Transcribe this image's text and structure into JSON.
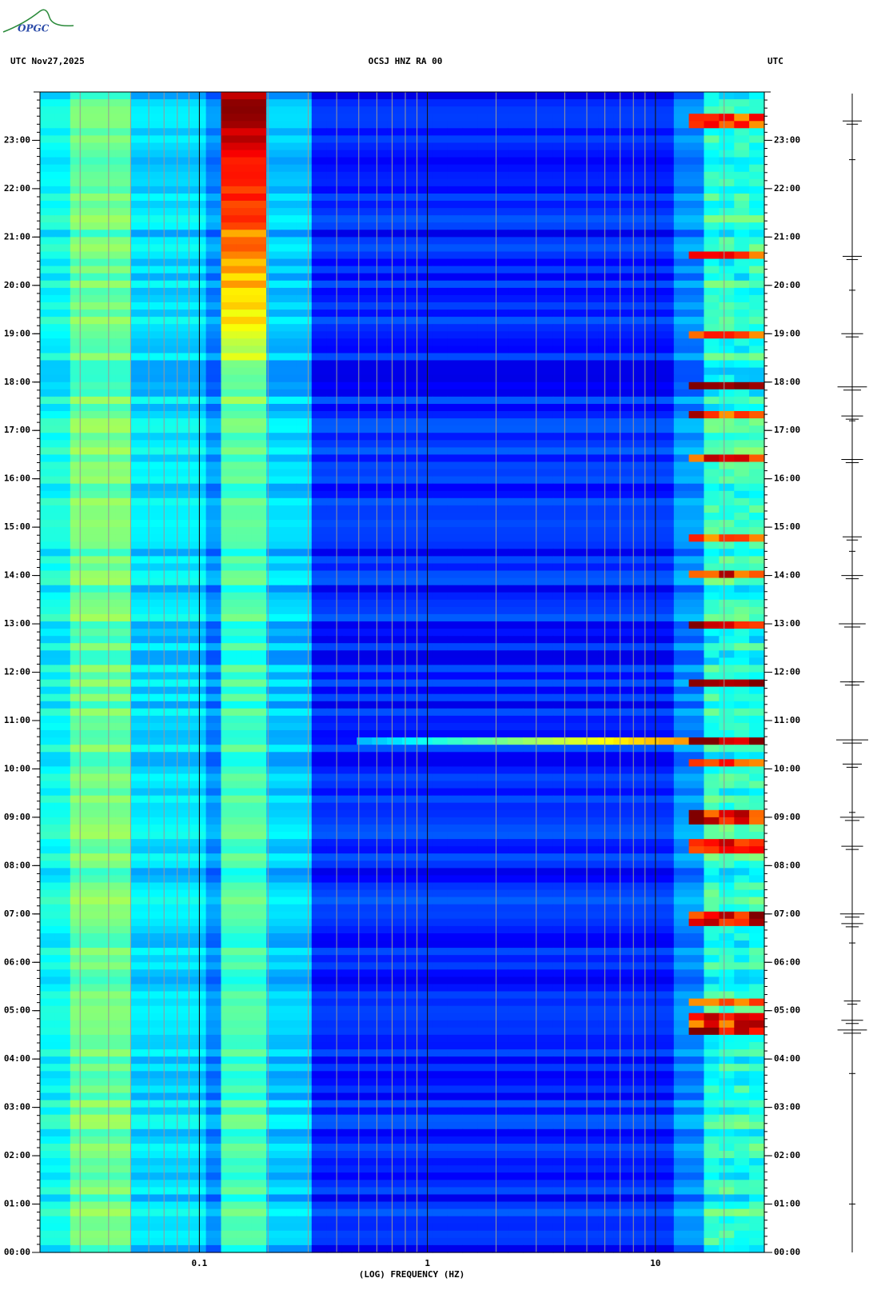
{
  "logo": "OPGC",
  "chart_data": {
    "type": "spectrogram",
    "title": "OCSJ HNZ RA 00",
    "date_label": "UTC  Nov27,2025",
    "right_label": "UTC",
    "xlabel": "(LOG) FREQUENCY (HZ)",
    "xscale": "log",
    "xlim": [
      0.02,
      30
    ],
    "xticks": [
      {
        "value": 0.1,
        "label": "0.1"
      },
      1,
      10
    ],
    "xgrid": [
      0.02,
      0.03,
      0.04,
      0.05,
      0.06,
      0.07,
      0.08,
      0.09,
      0.1,
      0.2,
      0.3,
      0.4,
      0.5,
      0.6,
      0.7,
      0.8,
      0.9,
      1,
      2,
      3,
      4,
      5,
      6,
      7,
      8,
      9,
      10,
      20,
      30
    ],
    "ylim": [
      0,
      24
    ],
    "yticks": [
      {
        "value": 0,
        "label": "00:00"
      },
      {
        "value": 1,
        "label": "01:00"
      },
      {
        "value": 2,
        "label": "02:00"
      },
      {
        "value": 3,
        "label": "03:00"
      },
      {
        "value": 4,
        "label": "04:00"
      },
      {
        "value": 5,
        "label": "05:00"
      },
      {
        "value": 6,
        "label": "06:00"
      },
      {
        "value": 7,
        "label": "07:00"
      },
      {
        "value": 8,
        "label": "08:00"
      },
      {
        "value": 9,
        "label": "09:00"
      },
      {
        "value": 10,
        "label": "10:00"
      },
      {
        "value": 11,
        "label": "11:00"
      },
      {
        "value": 12,
        "label": "12:00"
      },
      {
        "value": 13,
        "label": "13:00"
      },
      {
        "value": 14,
        "label": "14:00"
      },
      {
        "value": 15,
        "label": "15:00"
      },
      {
        "value": 16,
        "label": "16:00"
      },
      {
        "value": 17,
        "label": "17:00"
      },
      {
        "value": 18,
        "label": "18:00"
      },
      {
        "value": 19,
        "label": "19:00"
      },
      {
        "value": 20,
        "label": "20:00"
      },
      {
        "value": 21,
        "label": "21:00"
      },
      {
        "value": 22,
        "label": "22:00"
      },
      {
        "value": 23,
        "label": "23:00"
      }
    ]
  }
}
